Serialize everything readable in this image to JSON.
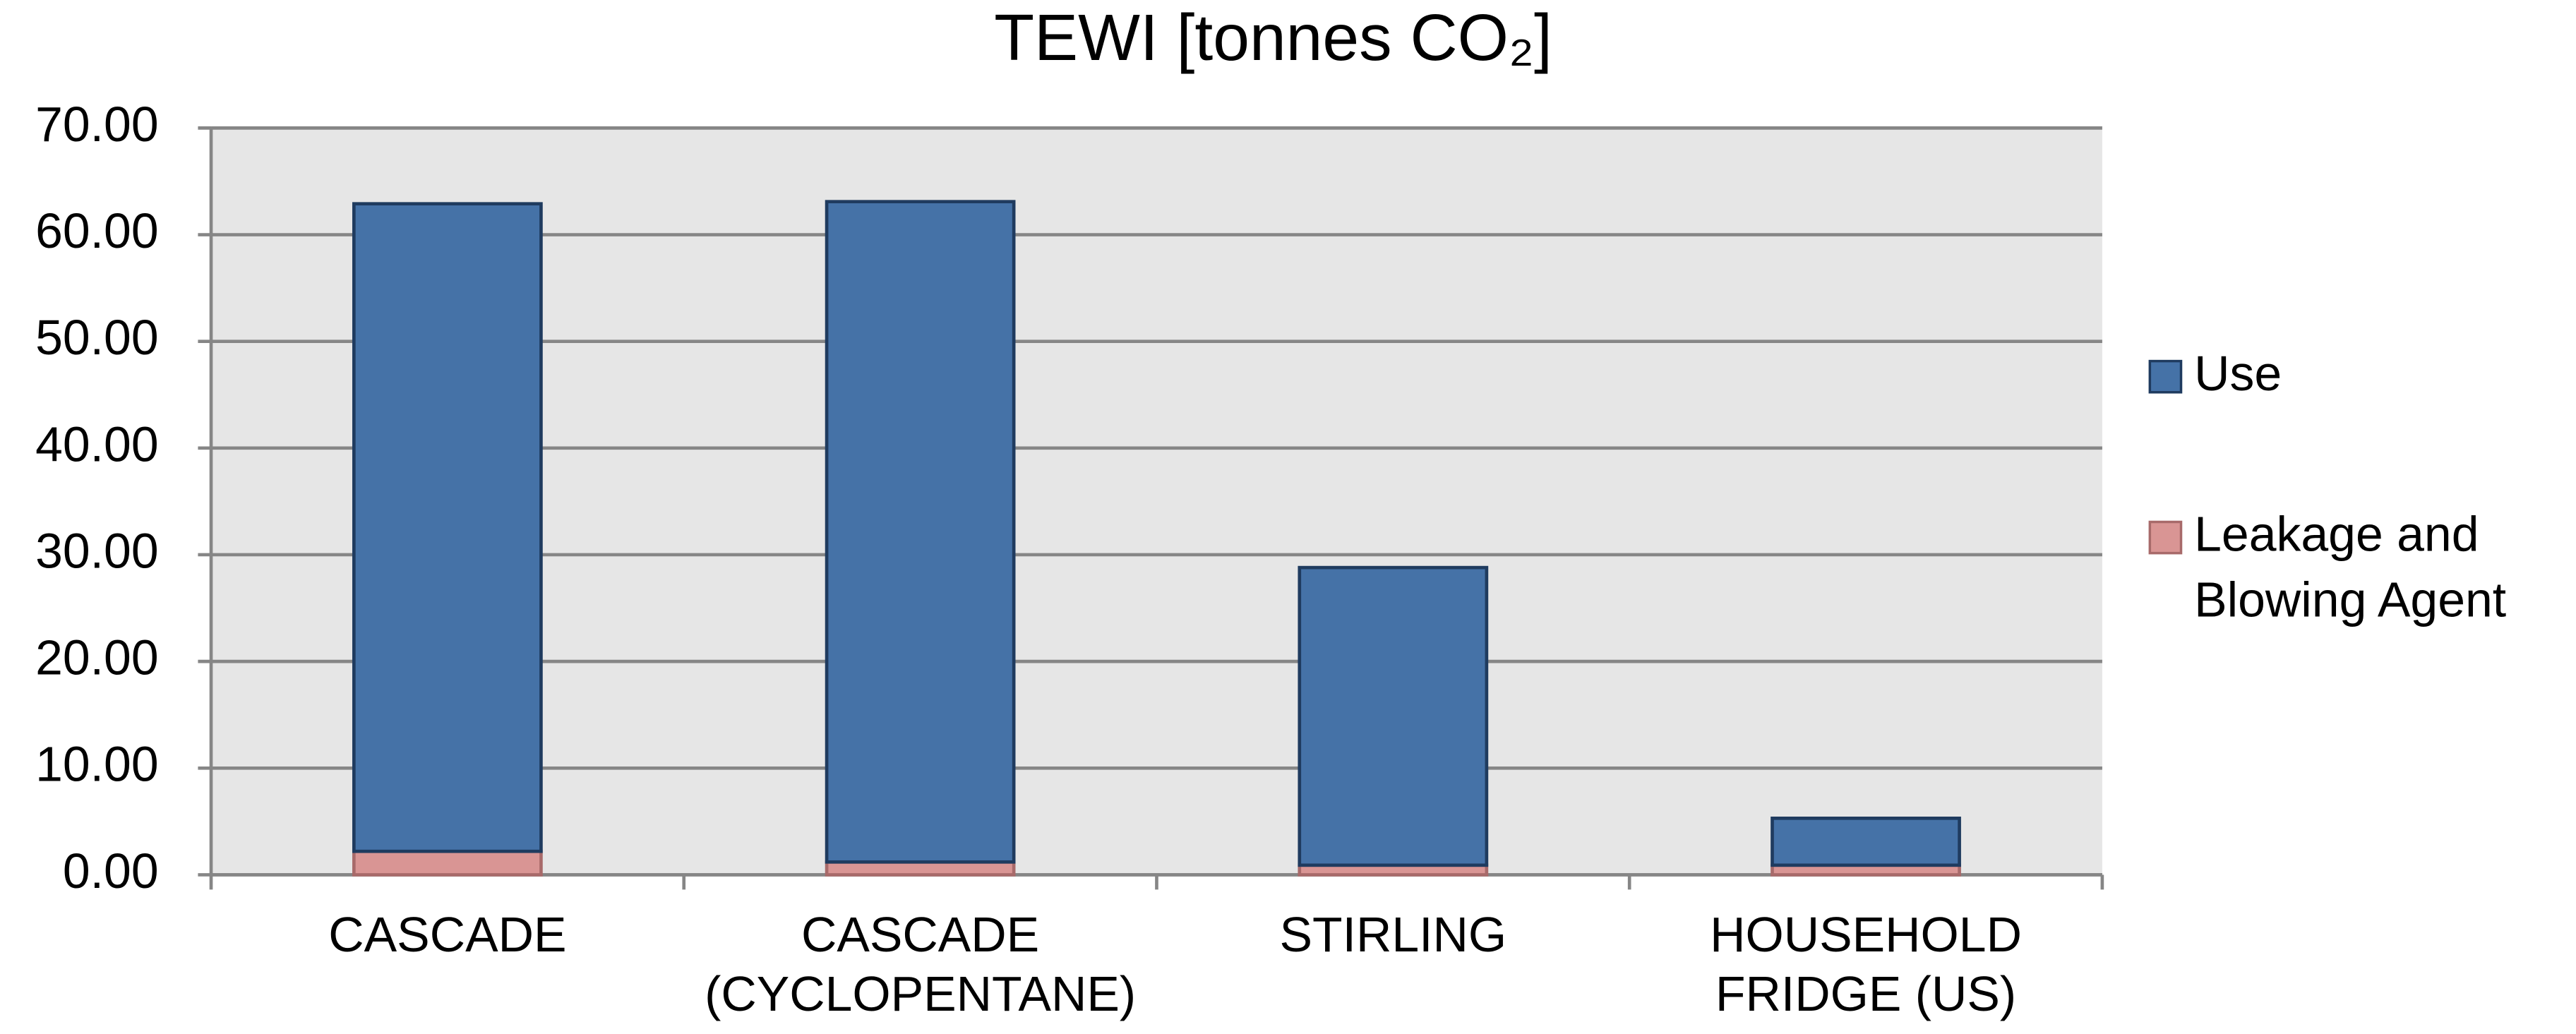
{
  "chart_data": {
    "type": "stacked_bar",
    "title": "TEWI [tonnes CO₂]",
    "categories": [
      "CASCADE",
      "CASCADE (CYCLOPENTANE)",
      "STIRLING",
      "HOUSEHOLD FRIDGE (US)"
    ],
    "series": [
      {
        "name": "Leakage and Blowing Agent",
        "color": "#d99594",
        "values": [
          2.2,
          1.2,
          0.9,
          0.9
        ]
      },
      {
        "name": "Use",
        "color": "#4572a7",
        "values": [
          60.7,
          61.9,
          27.9,
          4.4
        ]
      }
    ],
    "ylim": [
      0,
      70
    ],
    "yticks": [
      {
        "value": 0,
        "label": "0.00"
      },
      {
        "value": 10,
        "label": "10.00"
      },
      {
        "value": 20,
        "label": "20.00"
      },
      {
        "value": 30,
        "label": "30.00"
      },
      {
        "value": 40,
        "label": "40.00"
      },
      {
        "value": 50,
        "label": "50.00"
      },
      {
        "value": 60,
        "label": "60.00"
      },
      {
        "value": 70,
        "label": "70.00"
      }
    ],
    "grid": true,
    "legend": "right"
  }
}
